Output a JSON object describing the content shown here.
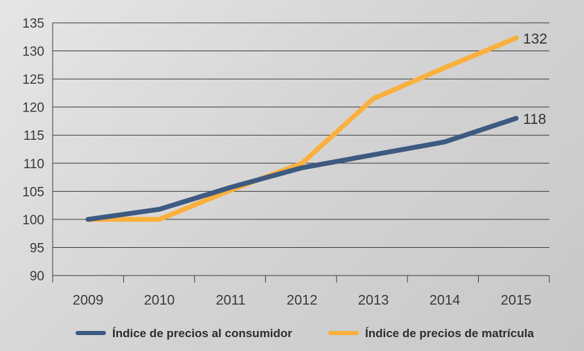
{
  "chart_data": {
    "type": "line",
    "x": [
      "2009",
      "2010",
      "2011",
      "2012",
      "2013",
      "2014",
      "2015"
    ],
    "ylim": [
      90,
      135
    ],
    "yticks": [
      90,
      95,
      100,
      105,
      110,
      115,
      120,
      125,
      130,
      135
    ],
    "grid": true,
    "legend_position": "bottom",
    "series": [
      {
        "name": "Índice de precios al consumidor",
        "values": [
          100,
          101.8,
          105.7,
          109.2,
          111.5,
          113.8,
          118
        ],
        "color": "#3d5a80",
        "end_label": "118"
      },
      {
        "name": "Índice de precios de matrícula",
        "values": [
          100,
          100,
          105.2,
          110,
          121.5,
          127,
          132.3
        ],
        "color": "#fbb03b",
        "end_label": "132"
      }
    ]
  }
}
